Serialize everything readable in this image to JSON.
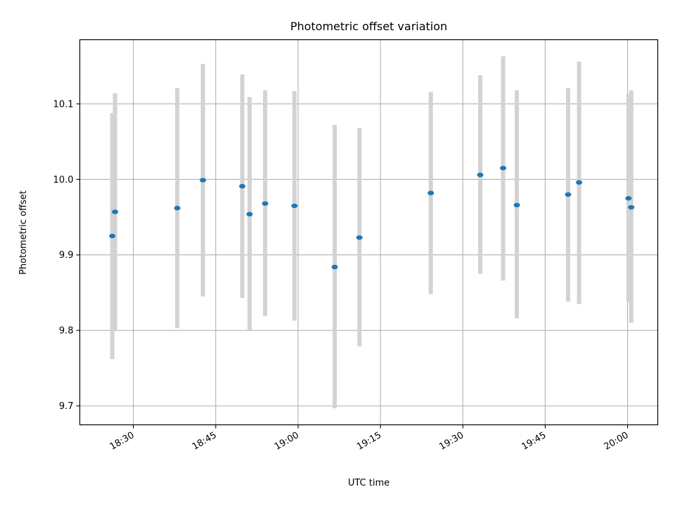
{
  "chart_data": {
    "type": "scatter",
    "title": "Photometric offset variation",
    "xlabel": "UTC time",
    "ylabel": "Photometric offset",
    "x_is_time": true,
    "xlim": [
      "18:20:15",
      "20:05:30"
    ],
    "ylim": [
      9.675,
      10.185
    ],
    "x_ticks": [
      "18:30",
      "18:45",
      "19:00",
      "19:15",
      "19:30",
      "19:45",
      "20:00"
    ],
    "y_ticks": [
      9.7,
      9.8,
      9.9,
      10.0,
      10.1
    ],
    "y_tick_labels": [
      "9.7",
      "9.8",
      "9.9",
      "10.0",
      "10.1"
    ],
    "grid": true,
    "legend": "none",
    "colors": {
      "point": "#1f77b4",
      "error_bar": "#d3d3d3",
      "grid": "#b0b0b0",
      "axes": "#000000"
    },
    "series": [
      {
        "points": [
          {
            "x": "18:26:10",
            "y": 9.925,
            "ylow": 9.762,
            "yhigh": 10.088
          },
          {
            "x": "18:26:40",
            "y": 9.957,
            "ylow": 9.8,
            "yhigh": 10.114
          },
          {
            "x": "18:38:00",
            "y": 9.962,
            "ylow": 9.803,
            "yhigh": 10.121
          },
          {
            "x": "18:42:40",
            "y": 9.999,
            "ylow": 9.845,
            "yhigh": 10.153
          },
          {
            "x": "18:49:50",
            "y": 9.991,
            "ylow": 9.843,
            "yhigh": 10.139
          },
          {
            "x": "18:51:10",
            "y": 9.954,
            "ylow": 9.8,
            "yhigh": 10.109
          },
          {
            "x": "18:54:00",
            "y": 9.968,
            "ylow": 9.819,
            "yhigh": 10.118
          },
          {
            "x": "18:59:20",
            "y": 9.965,
            "ylow": 9.813,
            "yhigh": 10.117
          },
          {
            "x": "19:06:40",
            "y": 9.884,
            "ylow": 9.697,
            "yhigh": 10.072
          },
          {
            "x": "19:11:10",
            "y": 9.923,
            "ylow": 9.779,
            "yhigh": 10.068
          },
          {
            "x": "19:24:10",
            "y": 9.982,
            "ylow": 9.848,
            "yhigh": 10.116
          },
          {
            "x": "19:33:10",
            "y": 10.006,
            "ylow": 9.875,
            "yhigh": 10.138
          },
          {
            "x": "19:37:20",
            "y": 10.015,
            "ylow": 9.866,
            "yhigh": 10.163
          },
          {
            "x": "19:39:50",
            "y": 9.966,
            "ylow": 9.816,
            "yhigh": 10.118
          },
          {
            "x": "19:49:10",
            "y": 9.98,
            "ylow": 9.838,
            "yhigh": 10.121
          },
          {
            "x": "19:51:10",
            "y": 9.996,
            "ylow": 9.835,
            "yhigh": 10.156
          },
          {
            "x": "20:00:10",
            "y": 9.975,
            "ylow": 9.838,
            "yhigh": 10.113
          },
          {
            "x": "20:00:40",
            "y": 9.963,
            "ylow": 9.81,
            "yhigh": 10.118
          }
        ]
      }
    ]
  }
}
